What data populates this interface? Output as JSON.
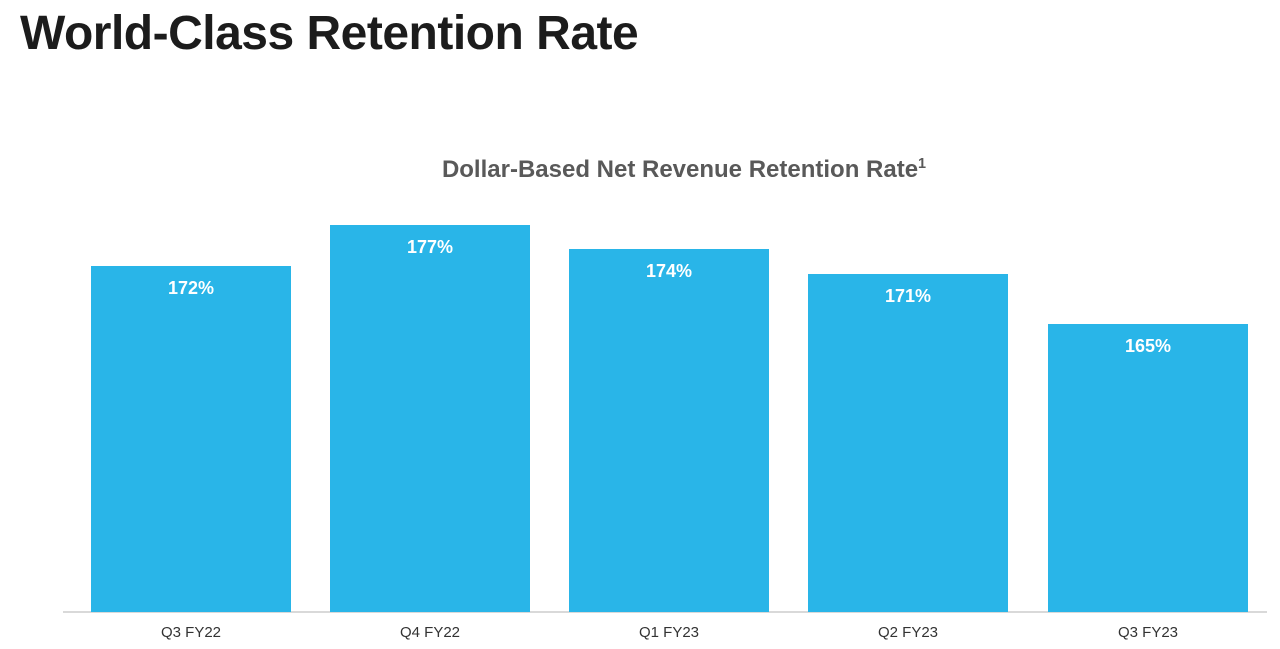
{
  "page": {
    "title": "World-Class Retention Rate"
  },
  "chart": {
    "subtitle": "Dollar-Based Net Revenue Retention Rate",
    "footnote_marker": "1"
  },
  "colors": {
    "bar": "#29B5E8",
    "title_text": "#1c1c1c",
    "subtitle_text": "#595959",
    "bar_label_text": "#ffffff",
    "axis_line": "#d9d9d9",
    "x_label_text": "#333333"
  },
  "chart_data": {
    "type": "bar",
    "title": "Dollar-Based Net Revenue Retention Rate¹",
    "categories": [
      "Q3 FY22",
      "Q4 FY22",
      "Q1 FY23",
      "Q2 FY23",
      "Q3 FY23"
    ],
    "values": [
      172,
      177,
      174,
      171,
      165
    ],
    "data_labels": [
      "172%",
      "177%",
      "174%",
      "171%",
      "165%"
    ],
    "value_unit": "%",
    "xlabel": "",
    "ylabel": "",
    "ylim": [
      130,
      180
    ],
    "y_axis_visible": false,
    "grid": false,
    "legend": "none",
    "data_label_position": "inside-top"
  }
}
